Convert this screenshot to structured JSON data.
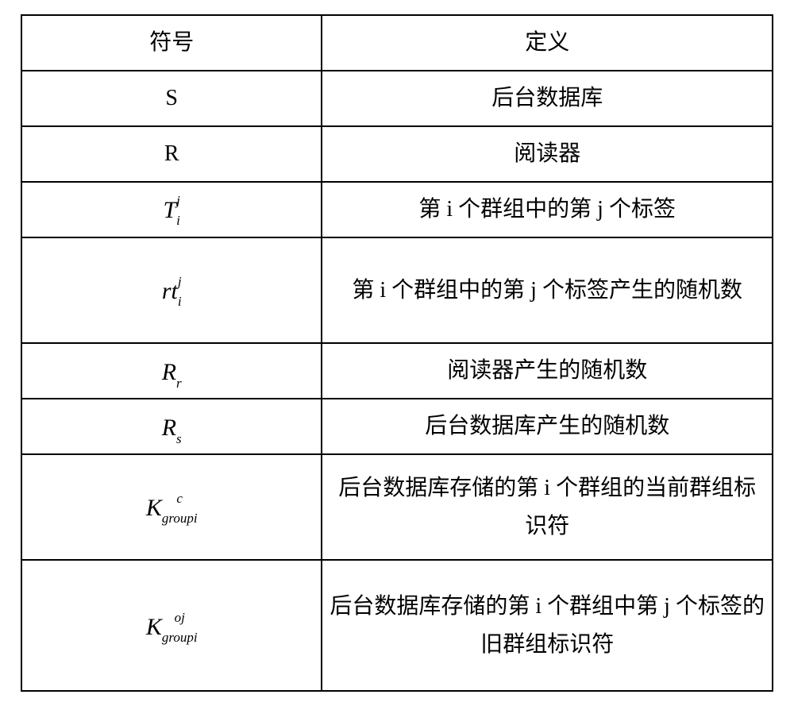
{
  "table": {
    "border_color": "#000000",
    "background_color": "#ffffff",
    "text_color": "#000000",
    "font_family_body": "Songti",
    "font_family_math": "Cambria Math",
    "body_fontsize_pt": 21,
    "math_base_fontsize_pt": 22,
    "math_script_fontsize_pt": 13,
    "columns": [
      {
        "key": "symbol",
        "header": "符号",
        "width_pct": 40,
        "align": "center"
      },
      {
        "key": "definition",
        "header": "定义",
        "width_pct": 60,
        "align": "center"
      }
    ],
    "rows": [
      {
        "symbol": {
          "type": "plain",
          "text": "S",
          "italic": false
        },
        "definition": "后台数据库"
      },
      {
        "symbol": {
          "type": "plain",
          "text": "R",
          "italic": false
        },
        "definition": "阅读器"
      },
      {
        "symbol": {
          "type": "subsup",
          "base": "T",
          "sub": "i",
          "sup": "j"
        },
        "definition": "第 i 个群组中的第 j 个标签"
      },
      {
        "symbol": {
          "type": "subsup",
          "base": "rt",
          "sub": "i",
          "sup": "j"
        },
        "definition": "第 i 个群组中的第 j 个标签产生的随机数"
      },
      {
        "symbol": {
          "type": "sub",
          "base": "R",
          "sub": "r"
        },
        "definition": "阅读器产生的随机数"
      },
      {
        "symbol": {
          "type": "sub",
          "base": "R",
          "sub": "s"
        },
        "definition": "后台数据库产生的随机数"
      },
      {
        "symbol": {
          "type": "subsup",
          "base": "K",
          "sub": "groupi",
          "sup": "c"
        },
        "definition": "后台数据库存储的第 i 个群组的当前群组标识符"
      },
      {
        "symbol": {
          "type": "subsup",
          "base": "K",
          "sub": "groupi",
          "sup": "oj"
        },
        "definition": "后台数据库存储的第 i 个群组中第 j 个标签的旧群组标识符"
      }
    ]
  }
}
